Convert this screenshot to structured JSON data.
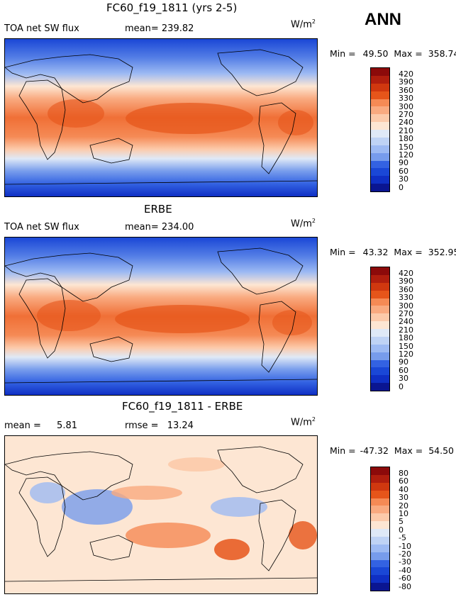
{
  "season": "ANN",
  "colors": {
    "full": [
      "#8c0a0a",
      "#b01e0e",
      "#d0380f",
      "#e6551a",
      "#f06f36",
      "#f58a55",
      "#f9aa80",
      "#fccaaa",
      "#fde6d3",
      "#dfe9f7",
      "#bfd3f5",
      "#9dbaf3",
      "#779cec",
      "#557fe6",
      "#3362e2",
      "#1a47d6",
      "#0f2fc4",
      "#0a1591"
    ],
    "diff": [
      "#8c0a0a",
      "#b01e0e",
      "#d0380f",
      "#e6551a",
      "#f06f36",
      "#f58a55",
      "#f9aa80",
      "#fccaaa",
      "#fde6d3",
      "#dfe9f7",
      "#bfd3f5",
      "#9dbaf3",
      "#779cec",
      "#557fe6",
      "#3362e2",
      "#1a47d6",
      "#0f2fc4",
      "#0a1591"
    ]
  },
  "panels": [
    {
      "title": "FC60_f19_1811 (yrs 2-5)",
      "left_label": "TOA net SW flux",
      "stat_label": "mean=",
      "stat_value": "239.82",
      "units": "W/m",
      "units_exp": "2",
      "min_label": "Min =",
      "min_value": "49.50",
      "max_label": "Max =",
      "max_value": "358.74",
      "ticks": [
        "420",
        "390",
        "360",
        "330",
        "300",
        "270",
        "240",
        "210",
        "180",
        "150",
        "120",
        "90",
        "60",
        "30",
        "0"
      ]
    },
    {
      "title": "ERBE",
      "left_label": "TOA net SW flux",
      "stat_label": "mean=",
      "stat_value": "234.00",
      "units": "W/m",
      "units_exp": "2",
      "min_label": "Min =",
      "min_value": "43.32",
      "max_label": "Max =",
      "max_value": "352.95",
      "ticks": [
        "420",
        "390",
        "360",
        "330",
        "300",
        "270",
        "240",
        "210",
        "180",
        "150",
        "120",
        "90",
        "60",
        "30",
        "0"
      ]
    },
    {
      "title": "FC60_f19_1811 - ERBE",
      "left_label": "mean =",
      "left_value": "5.81",
      "stat_label": "rmse =",
      "stat_value": "13.24",
      "units": "W/m",
      "units_exp": "2",
      "min_label": "Min =",
      "min_value": "-47.32",
      "max_label": "Max =",
      "max_value": "54.50",
      "ticks": [
        "80",
        "60",
        "40",
        "30",
        "20",
        "10",
        "5",
        "0",
        "-5",
        "-10",
        "-20",
        "-30",
        "-40",
        "-60",
        "-80"
      ]
    }
  ],
  "chart_data": [
    {
      "type": "heatmap",
      "title": "FC60_f19_1811 (yrs 2-5)",
      "variable": "TOA net SW flux",
      "units": "W/m2",
      "mean": 239.82,
      "min": 49.5,
      "max": 358.74,
      "levels": [
        0,
        30,
        60,
        90,
        120,
        150,
        180,
        210,
        240,
        270,
        300,
        330,
        360,
        390,
        420
      ]
    },
    {
      "type": "heatmap",
      "title": "ERBE",
      "variable": "TOA net SW flux",
      "units": "W/m2",
      "mean": 234.0,
      "min": 43.32,
      "max": 352.95,
      "levels": [
        0,
        30,
        60,
        90,
        120,
        150,
        180,
        210,
        240,
        270,
        300,
        330,
        360,
        390,
        420
      ]
    },
    {
      "type": "heatmap",
      "title": "FC60_f19_1811 - ERBE",
      "units": "W/m2",
      "mean": 5.81,
      "rmse": 13.24,
      "min": -47.32,
      "max": 54.5,
      "levels": [
        -80,
        -60,
        -40,
        -30,
        -20,
        -10,
        -5,
        0,
        5,
        10,
        20,
        30,
        40,
        60,
        80
      ]
    }
  ]
}
